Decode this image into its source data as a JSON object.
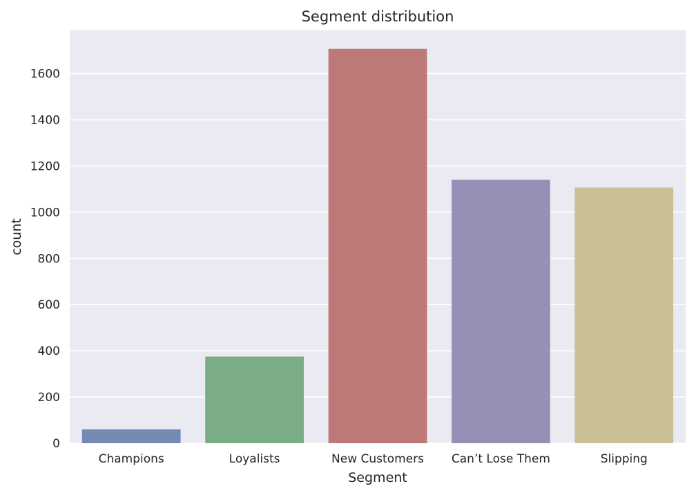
{
  "chart_data": {
    "type": "bar",
    "title": "Segment distribution",
    "xlabel": "Segment",
    "ylabel": "count",
    "categories": [
      "Champions",
      "Loyalists",
      "New Customers",
      "Can’t Lose Them",
      "Slipping"
    ],
    "values": [
      60,
      375,
      1707,
      1140,
      1107
    ],
    "ylim": [
      0,
      1787
    ],
    "yticks": [
      0,
      200,
      400,
      600,
      800,
      1000,
      1200,
      1400,
      1600
    ],
    "grid": true,
    "colors": [
      "#7589b3",
      "#7aad87",
      "#bd7878",
      "#9690b6",
      "#cac095"
    ],
    "background": "#eaeaf2"
  }
}
